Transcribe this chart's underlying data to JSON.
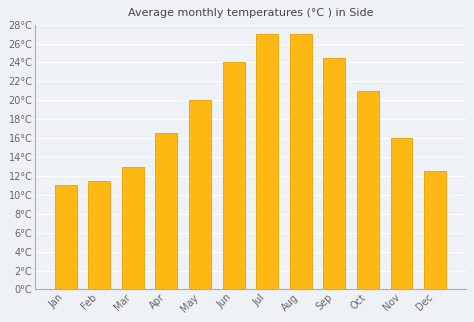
{
  "title": "Average monthly temperatures (°C ) in Side",
  "months": [
    "Jan",
    "Feb",
    "Mar",
    "Apr",
    "May",
    "Jun",
    "Jul",
    "Aug",
    "Sep",
    "Oct",
    "Nov",
    "Dec"
  ],
  "values": [
    11,
    11.5,
    13,
    16.5,
    20,
    24,
    27,
    27,
    24.5,
    21,
    16,
    12.5
  ],
  "bar_color": "#FDB813",
  "bar_edge_color": "#E8A000",
  "ylim": [
    0,
    28
  ],
  "yticks": [
    0,
    2,
    4,
    6,
    8,
    10,
    12,
    14,
    16,
    18,
    20,
    22,
    24,
    26,
    28
  ],
  "background_color": "#eef2f7",
  "plot_bg_color": "#eef2f7",
  "grid_color": "#ffffff",
  "title_fontsize": 8,
  "tick_fontsize": 7,
  "spine_color": "#aaaaaa"
}
